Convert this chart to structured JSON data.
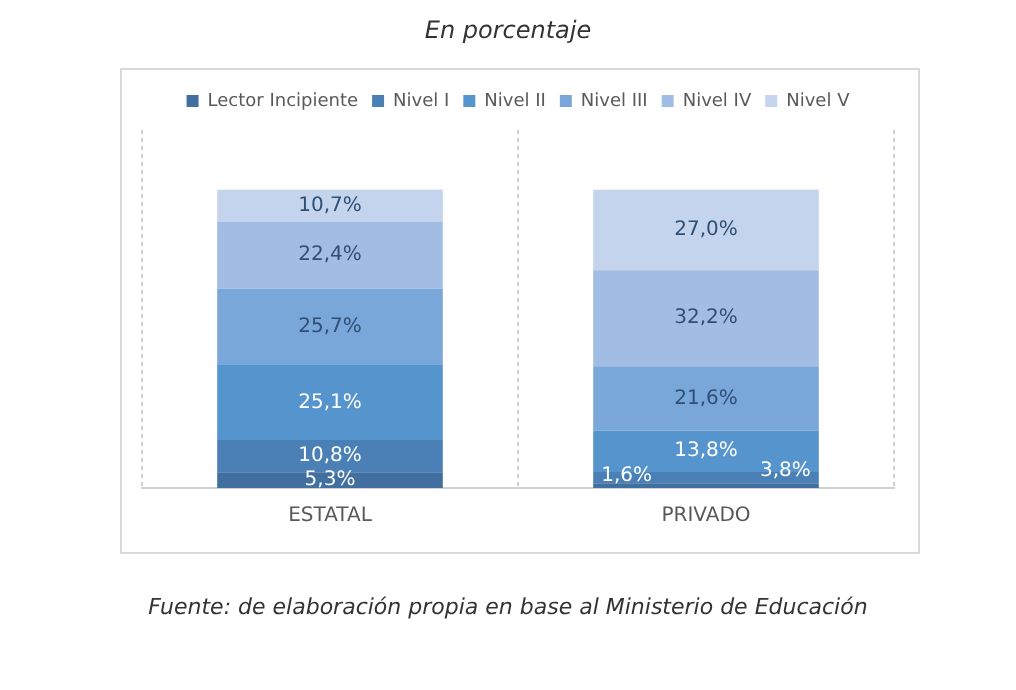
{
  "chart_data": {
    "type": "bar",
    "title": "En porcentaje",
    "stacked": true,
    "tick_labels": "x",
    "grid": "x",
    "legend": "top",
    "categories": [
      "ESTATAL",
      "PRIVADO"
    ],
    "series": [
      {
        "name": "Lector Incipiente",
        "color": "#416f9f",
        "values": [
          5.3,
          1.6
        ],
        "value_labels": [
          "5,3%",
          "1,6%"
        ]
      },
      {
        "name": "Nivel I",
        "color": "#4a80b6",
        "values": [
          10.8,
          3.8
        ],
        "value_labels": [
          "10,8%",
          "3,8%"
        ]
      },
      {
        "name": "Nivel II",
        "color": "#5694cd",
        "values": [
          25.1,
          13.8
        ],
        "value_labels": [
          "25,1%",
          "13,8%"
        ]
      },
      {
        "name": "Nivel III",
        "color": "#7aa7d9",
        "values": [
          25.7,
          21.6
        ],
        "value_labels": [
          "25,7%",
          "21,6%"
        ]
      },
      {
        "name": "Nivel IV",
        "color": "#a1bde3",
        "values": [
          22.4,
          32.2
        ],
        "value_labels": [
          "22,4%",
          "32,2%"
        ]
      },
      {
        "name": "Nivel V",
        "color": "#c4d4ec",
        "values": [
          10.7,
          27.0
        ],
        "value_labels": [
          "10,7%",
          "27,0%"
        ]
      }
    ],
    "annotations": [
      "Fuente: de elaboración propia en base al Ministerio de Educación"
    ]
  }
}
